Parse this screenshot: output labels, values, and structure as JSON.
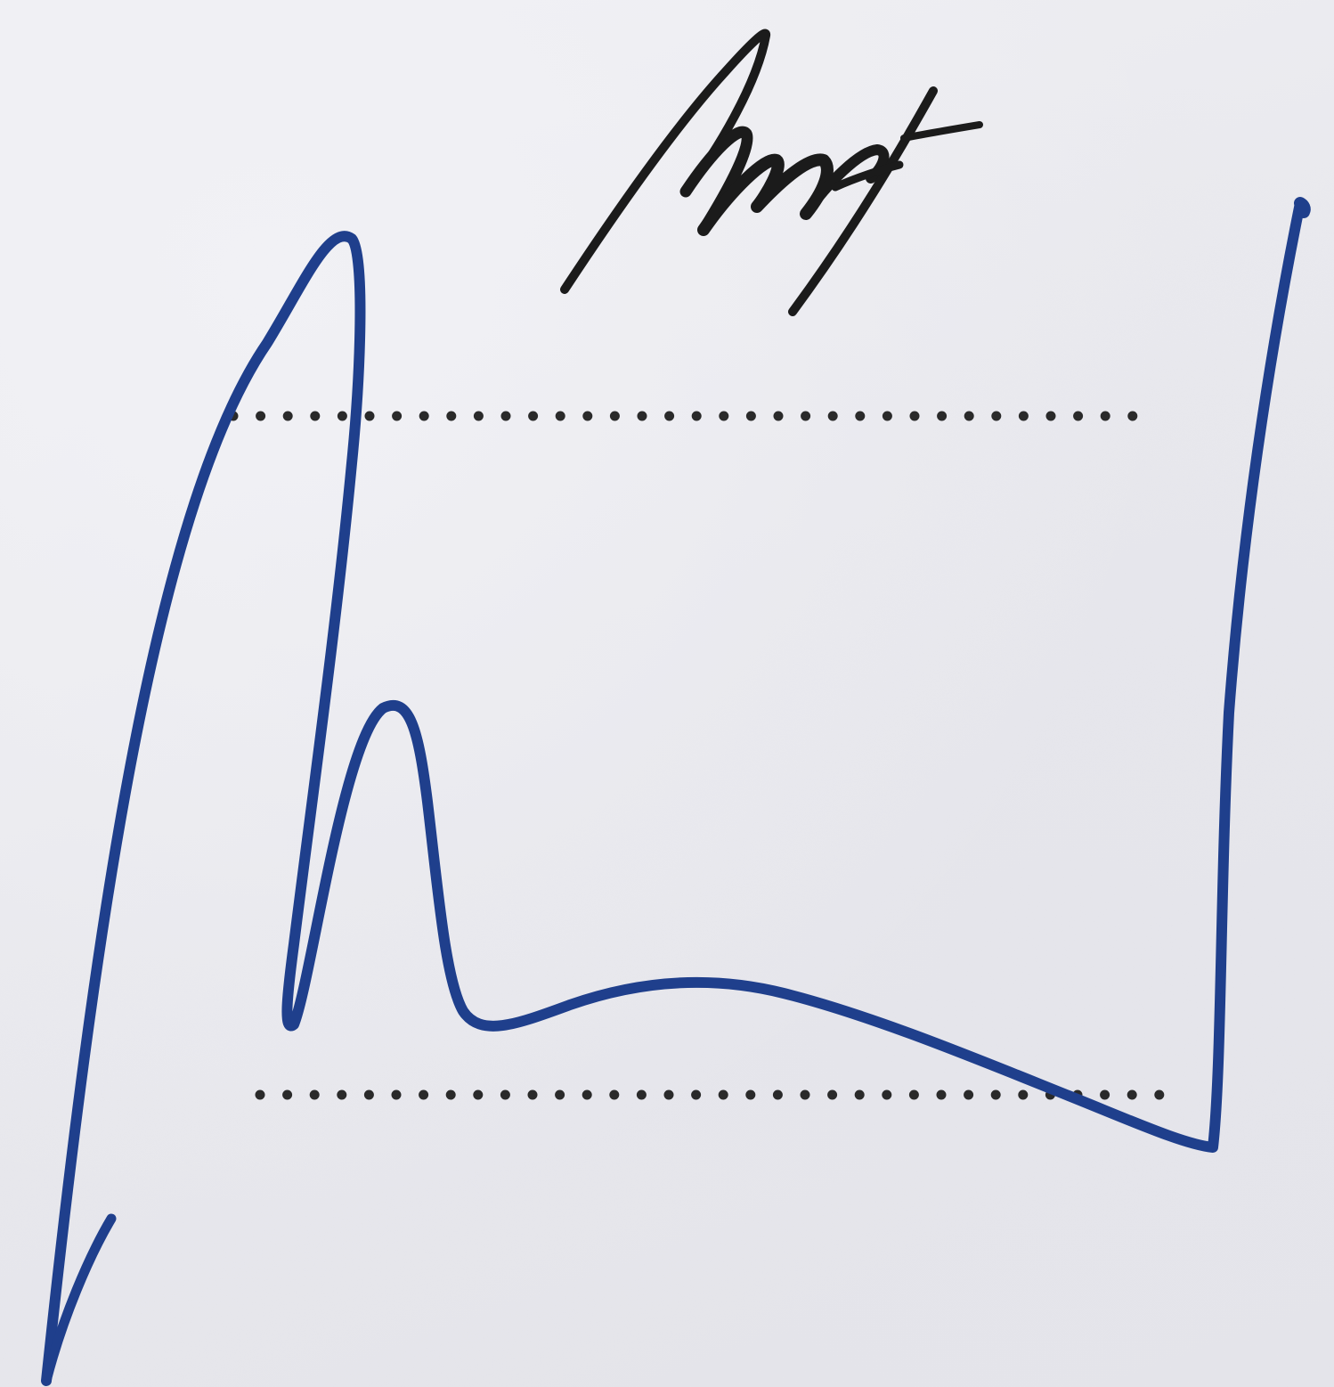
{
  "paper": {
    "background": "#e9e9ee",
    "description_free": true
  },
  "signatures": {
    "black_signature": {
      "ink_color": "#1b1b1b",
      "icon": "handwritten-signature-black"
    },
    "blue_signature": {
      "ink_color": "#1f3f8c",
      "icon": "handwritten-signature-blue"
    }
  },
  "signature_lines": {
    "style": "dotted",
    "dot_color": "#2a2a2a",
    "count": 2
  }
}
